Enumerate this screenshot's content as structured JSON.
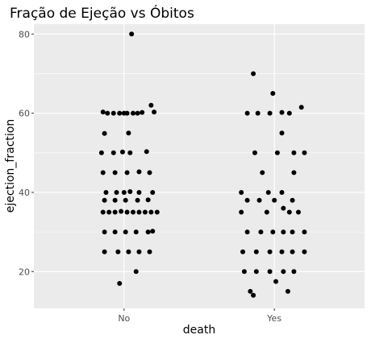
{
  "chart_data": {
    "type": "scatter",
    "title": "Fração de Ejeção vs Óbitos",
    "xlabel": "death",
    "ylabel": "ejection_fraction",
    "categories": [
      "No",
      "Yes"
    ],
    "yticks": [
      20,
      40,
      60,
      80
    ],
    "ylim": [
      10.7,
      82.5
    ],
    "grid": true,
    "legend": "none",
    "colors": {
      "panel": "#ebebeb",
      "grid": "#ffffff",
      "point": "#000000",
      "tick_text": "#4d4d4d"
    },
    "points": {
      "No": [
        {
          "x": 0.86,
          "y": 60.3
        },
        {
          "x": 0.89,
          "y": 60.0
        },
        {
          "x": 0.93,
          "y": 60.0
        },
        {
          "x": 0.97,
          "y": 60.0
        },
        {
          "x": 1.0,
          "y": 60.0
        },
        {
          "x": 1.02,
          "y": 60.0
        },
        {
          "x": 1.06,
          "y": 60.0
        },
        {
          "x": 1.09,
          "y": 60.0
        },
        {
          "x": 1.12,
          "y": 60.2
        },
        {
          "x": 1.18,
          "y": 62.0
        },
        {
          "x": 1.2,
          "y": 60.3
        },
        {
          "x": 1.05,
          "y": 80.0
        },
        {
          "x": 0.87,
          "y": 54.9
        },
        {
          "x": 1.03,
          "y": 55.0
        },
        {
          "x": 0.85,
          "y": 50.0
        },
        {
          "x": 0.93,
          "y": 50.0
        },
        {
          "x": 0.99,
          "y": 50.2
        },
        {
          "x": 1.04,
          "y": 50.0
        },
        {
          "x": 1.15,
          "y": 50.3
        },
        {
          "x": 0.86,
          "y": 45.0
        },
        {
          "x": 0.94,
          "y": 45.0
        },
        {
          "x": 1.02,
          "y": 45.0
        },
        {
          "x": 1.1,
          "y": 45.2
        },
        {
          "x": 1.17,
          "y": 45.0
        },
        {
          "x": 0.88,
          "y": 40.0
        },
        {
          "x": 0.95,
          "y": 40.0
        },
        {
          "x": 1.0,
          "y": 40.0
        },
        {
          "x": 1.04,
          "y": 40.2
        },
        {
          "x": 1.1,
          "y": 40.0
        },
        {
          "x": 1.19,
          "y": 40.0
        },
        {
          "x": 0.87,
          "y": 38.0
        },
        {
          "x": 0.94,
          "y": 38.0
        },
        {
          "x": 1.01,
          "y": 38.0
        },
        {
          "x": 1.09,
          "y": 38.0
        },
        {
          "x": 1.16,
          "y": 38.1
        },
        {
          "x": 0.86,
          "y": 35.0
        },
        {
          "x": 0.9,
          "y": 35.0
        },
        {
          "x": 0.94,
          "y": 35.0
        },
        {
          "x": 0.98,
          "y": 35.2
        },
        {
          "x": 1.02,
          "y": 35.0
        },
        {
          "x": 1.06,
          "y": 35.0
        },
        {
          "x": 1.1,
          "y": 35.0
        },
        {
          "x": 1.14,
          "y": 35.0
        },
        {
          "x": 1.18,
          "y": 35.0
        },
        {
          "x": 1.22,
          "y": 35.0
        },
        {
          "x": 0.87,
          "y": 30.0
        },
        {
          "x": 0.94,
          "y": 30.0
        },
        {
          "x": 1.01,
          "y": 30.0
        },
        {
          "x": 1.08,
          "y": 30.0
        },
        {
          "x": 1.16,
          "y": 30.0
        },
        {
          "x": 1.19,
          "y": 30.2
        },
        {
          "x": 0.87,
          "y": 25.0
        },
        {
          "x": 0.96,
          "y": 25.0
        },
        {
          "x": 1.03,
          "y": 25.0
        },
        {
          "x": 1.1,
          "y": 25.0
        },
        {
          "x": 1.17,
          "y": 25.0
        },
        {
          "x": 1.08,
          "y": 20.0
        },
        {
          "x": 0.97,
          "y": 17.0
        }
      ],
      "Yes": [
        {
          "x": 1.82,
          "y": 60.0
        },
        {
          "x": 1.89,
          "y": 60.0
        },
        {
          "x": 1.97,
          "y": 60.0
        },
        {
          "x": 2.05,
          "y": 60.2
        },
        {
          "x": 2.1,
          "y": 60.0
        },
        {
          "x": 2.18,
          "y": 61.5
        },
        {
          "x": 1.86,
          "y": 70.0
        },
        {
          "x": 1.99,
          "y": 65.0
        },
        {
          "x": 2.05,
          "y": 55.0
        },
        {
          "x": 1.87,
          "y": 50.0
        },
        {
          "x": 2.02,
          "y": 50.0
        },
        {
          "x": 2.13,
          "y": 50.0
        },
        {
          "x": 2.2,
          "y": 50.0
        },
        {
          "x": 1.92,
          "y": 45.0
        },
        {
          "x": 2.13,
          "y": 45.0
        },
        {
          "x": 1.78,
          "y": 40.0
        },
        {
          "x": 1.96,
          "y": 40.0
        },
        {
          "x": 2.05,
          "y": 40.0
        },
        {
          "x": 2.12,
          "y": 38.0
        },
        {
          "x": 1.82,
          "y": 38.0
        },
        {
          "x": 1.9,
          "y": 38.0
        },
        {
          "x": 2.0,
          "y": 38.0
        },
        {
          "x": 2.06,
          "y": 36.0
        },
        {
          "x": 1.78,
          "y": 35.0
        },
        {
          "x": 1.95,
          "y": 35.0
        },
        {
          "x": 2.1,
          "y": 35.0
        },
        {
          "x": 2.16,
          "y": 35.0
        },
        {
          "x": 1.82,
          "y": 30.0
        },
        {
          "x": 1.91,
          "y": 30.0
        },
        {
          "x": 1.99,
          "y": 30.0
        },
        {
          "x": 2.06,
          "y": 30.0
        },
        {
          "x": 2.12,
          "y": 30.0
        },
        {
          "x": 2.2,
          "y": 30.0
        },
        {
          "x": 1.79,
          "y": 25.0
        },
        {
          "x": 1.88,
          "y": 25.0
        },
        {
          "x": 1.97,
          "y": 25.0
        },
        {
          "x": 2.05,
          "y": 25.0
        },
        {
          "x": 2.12,
          "y": 25.0
        },
        {
          "x": 2.2,
          "y": 25.0
        },
        {
          "x": 1.8,
          "y": 20.0
        },
        {
          "x": 1.88,
          "y": 20.0
        },
        {
          "x": 1.97,
          "y": 20.0
        },
        {
          "x": 2.06,
          "y": 20.0
        },
        {
          "x": 2.13,
          "y": 20.0
        },
        {
          "x": 1.84,
          "y": 15.0
        },
        {
          "x": 1.86,
          "y": 14.0
        },
        {
          "x": 2.01,
          "y": 17.5
        },
        {
          "x": 2.09,
          "y": 15.0
        }
      ]
    }
  }
}
